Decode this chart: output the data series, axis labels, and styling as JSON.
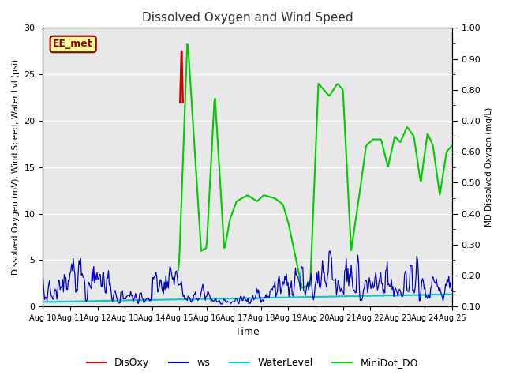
{
  "title": "Dissolved Oxygen and Wind Speed",
  "ylabel_left": "Dissolved Oxygen (mV), Wind Speed, Water Lvl (psi)",
  "ylabel_right": "MD Dissolved Oxygen (mg/L)",
  "xlabel": "Time",
  "ylim_left": [
    0,
    30
  ],
  "ylim_right": [
    0.1,
    1.0
  ],
  "yticks_left": [
    0,
    5,
    10,
    15,
    20,
    25,
    30
  ],
  "yticks_right": [
    0.1,
    0.2,
    0.3,
    0.4,
    0.5,
    0.6,
    0.7,
    0.8,
    0.9,
    1.0
  ],
  "xtick_labels": [
    "Aug 10",
    "Aug 11",
    "Aug 12",
    "Aug 13",
    "Aug 14",
    "Aug 15",
    "Aug 16",
    "Aug 17",
    "Aug 18",
    "Aug 19",
    "Aug 20",
    "Aug 21",
    "Aug 22",
    "Aug 23",
    "Aug 24",
    "Aug 25"
  ],
  "station_label": "EE_met",
  "fig_bg_color": "#ffffff",
  "plot_bg_color": "#e8e8e8",
  "grid_color": "#ffffff",
  "colors": {
    "DisOxy": "#cc0000",
    "ws": "#0000cc",
    "WaterLevel": "#00cccc",
    "MiniDot_DO": "#00cc00"
  },
  "legend_labels": [
    "DisOxy",
    "ws",
    "WaterLevel",
    "MiniDot_DO"
  ]
}
